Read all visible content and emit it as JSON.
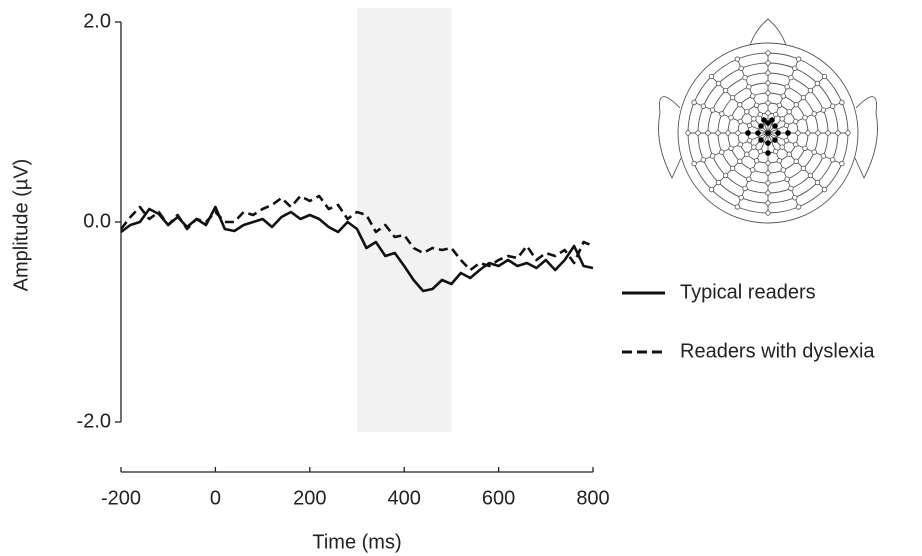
{
  "chart_data": {
    "type": "line",
    "x_label": "Time (ms)",
    "y_label": "Amplitude (µV)",
    "xlim": [
      -200,
      800
    ],
    "ylim": [
      -2.5,
      2.0
    ],
    "xticks": [
      -200,
      0,
      200,
      400,
      600,
      800
    ],
    "yticks": [
      {
        "value": 2,
        "label": "2.0"
      },
      {
        "value": 0,
        "label": "0.0"
      },
      {
        "value": -2,
        "label": "-2.0"
      }
    ],
    "highlight": [
      300,
      500
    ],
    "highlight_color": "#f2f2f2",
    "x": [
      -200,
      -180,
      -160,
      -140,
      -120,
      -100,
      -80,
      -60,
      -40,
      -20,
      0,
      20,
      40,
      60,
      80,
      100,
      120,
      140,
      160,
      180,
      200,
      220,
      240,
      260,
      280,
      300,
      320,
      340,
      360,
      380,
      400,
      420,
      440,
      460,
      480,
      500,
      520,
      540,
      560,
      580,
      600,
      620,
      640,
      660,
      680,
      700,
      720,
      740,
      760,
      780,
      800
    ],
    "series": [
      {
        "name": "Typical readers",
        "color": "#111111",
        "style": "solid",
        "values": [
          -0.1,
          -0.03,
          0,
          0.13,
          0.08,
          -0.03,
          0.05,
          -0.05,
          0.03,
          -0.03,
          0.15,
          -0.07,
          -0.09,
          -0.03,
          0,
          0.03,
          -0.05,
          0.05,
          0.1,
          0.03,
          0.07,
          0.03,
          -0.05,
          -0.1,
          0,
          -0.07,
          -0.26,
          -0.2,
          -0.34,
          -0.31,
          -0.44,
          -0.58,
          -0.69,
          -0.67,
          -0.58,
          -0.62,
          -0.51,
          -0.56,
          -0.48,
          -0.41,
          -0.44,
          -0.38,
          -0.44,
          -0.41,
          -0.46,
          -0.38,
          -0.48,
          -0.38,
          -0.24,
          -0.44,
          -0.46
        ]
      },
      {
        "name": "Readers with dyslexia",
        "color": "#111111",
        "style": "dashed",
        "values": [
          -0.07,
          0.05,
          0.15,
          0.03,
          0.1,
          -0.03,
          0.07,
          -0.07,
          0.03,
          0,
          0.1,
          0,
          0,
          0.1,
          0.07,
          0.13,
          0.17,
          0.24,
          0.15,
          0.26,
          0.21,
          0.26,
          0.13,
          0.17,
          0.03,
          0.1,
          0.07,
          -0.1,
          -0.03,
          -0.15,
          -0.13,
          -0.26,
          -0.31,
          -0.26,
          -0.28,
          -0.26,
          -0.38,
          -0.48,
          -0.41,
          -0.44,
          -0.38,
          -0.34,
          -0.36,
          -0.24,
          -0.38,
          -0.31,
          -0.34,
          -0.28,
          -0.41,
          -0.2,
          -0.24
        ]
      }
    ]
  }
}
